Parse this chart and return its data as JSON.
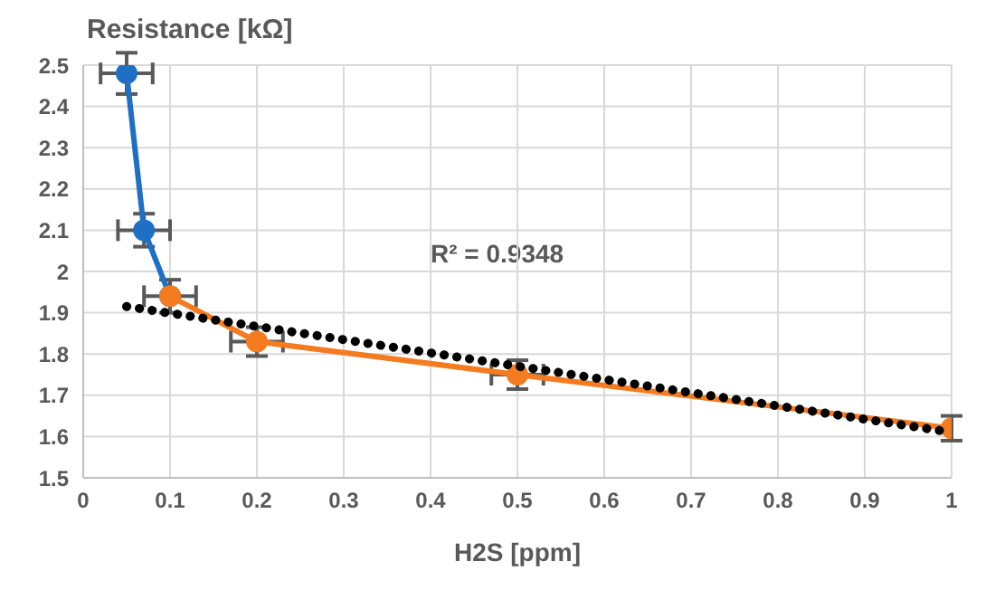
{
  "chart_data": {
    "type": "line",
    "ylabel": "Resistance [kΩ]",
    "xlabel": "H2S [ppm]",
    "annotations": [
      "R² = 0.9348"
    ],
    "xlim": [
      0,
      1
    ],
    "xticks": [
      0,
      0.1,
      0.2,
      0.3,
      0.4,
      0.5,
      0.6,
      0.7,
      0.8,
      0.9,
      1
    ],
    "ylim": [
      1.5,
      2.5
    ],
    "yticks": [
      1.5,
      1.6,
      1.7,
      1.8,
      1.9,
      2,
      2.1,
      2.2,
      2.3,
      2.4,
      2.5
    ],
    "grid": true,
    "legend": false,
    "marker": "circle",
    "series": [
      {
        "color": "#1f6fc5",
        "x": [
          0.05,
          0.07,
          0.1
        ],
        "values": [
          2.48,
          2.1,
          1.94
        ],
        "errors": [
          0.05,
          0.04,
          null
        ],
        "xerrors": [
          0.03,
          0.03,
          null
        ]
      },
      {
        "color": "#f47b20",
        "x": [
          0.1,
          0.2,
          0.5,
          1
        ],
        "values": [
          1.94,
          1.83,
          1.75,
          1.62
        ],
        "errors": [
          0.04,
          0.035,
          0.035,
          0.03
        ],
        "xerrors": [
          0.03,
          0.03,
          0.03,
          null
        ]
      },
      {
        "color": "#000000",
        "x": [
          0.05,
          1
        ],
        "values": [
          1.915,
          1.61
        ],
        "line_style": "dotted",
        "marker": "none"
      }
    ]
  }
}
